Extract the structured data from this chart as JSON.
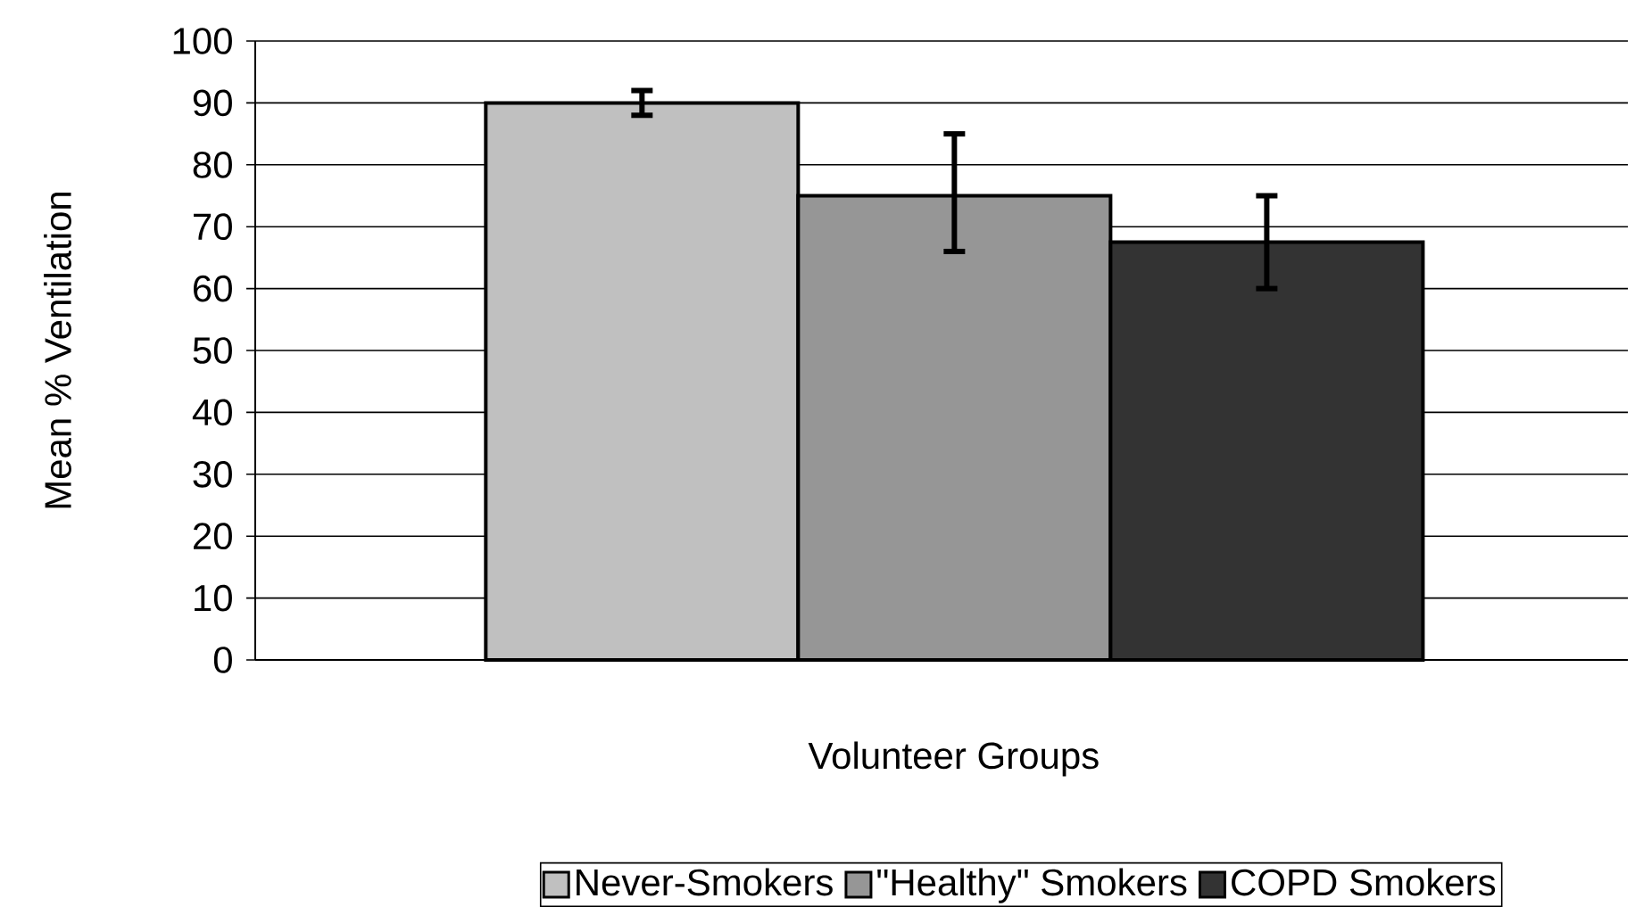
{
  "chart_data": {
    "type": "bar",
    "xlabel": "Volunteer Groups",
    "ylabel": "Mean % Ventilation",
    "categories": [
      null
    ],
    "series": [
      {
        "name": "Never-Smokers",
        "color": "#c0c0c0",
        "values": [
          90
        ],
        "errors": [
          [
            88,
            92
          ]
        ]
      },
      {
        "name": "\"Healthy\" Smokers",
        "color": "#969696",
        "values": [
          75
        ],
        "errors": [
          [
            66,
            85
          ]
        ]
      },
      {
        "name": "COPD Smokers",
        "color": "#333333",
        "values": [
          67.5
        ],
        "errors": [
          [
            60,
            75
          ]
        ]
      }
    ],
    "ylim": [
      0,
      100
    ],
    "yticks": [
      0,
      10,
      20,
      30,
      40,
      50,
      60,
      70,
      80,
      90,
      100
    ],
    "grid": "y",
    "legend": "bottom",
    "tick_labels": "y"
  }
}
